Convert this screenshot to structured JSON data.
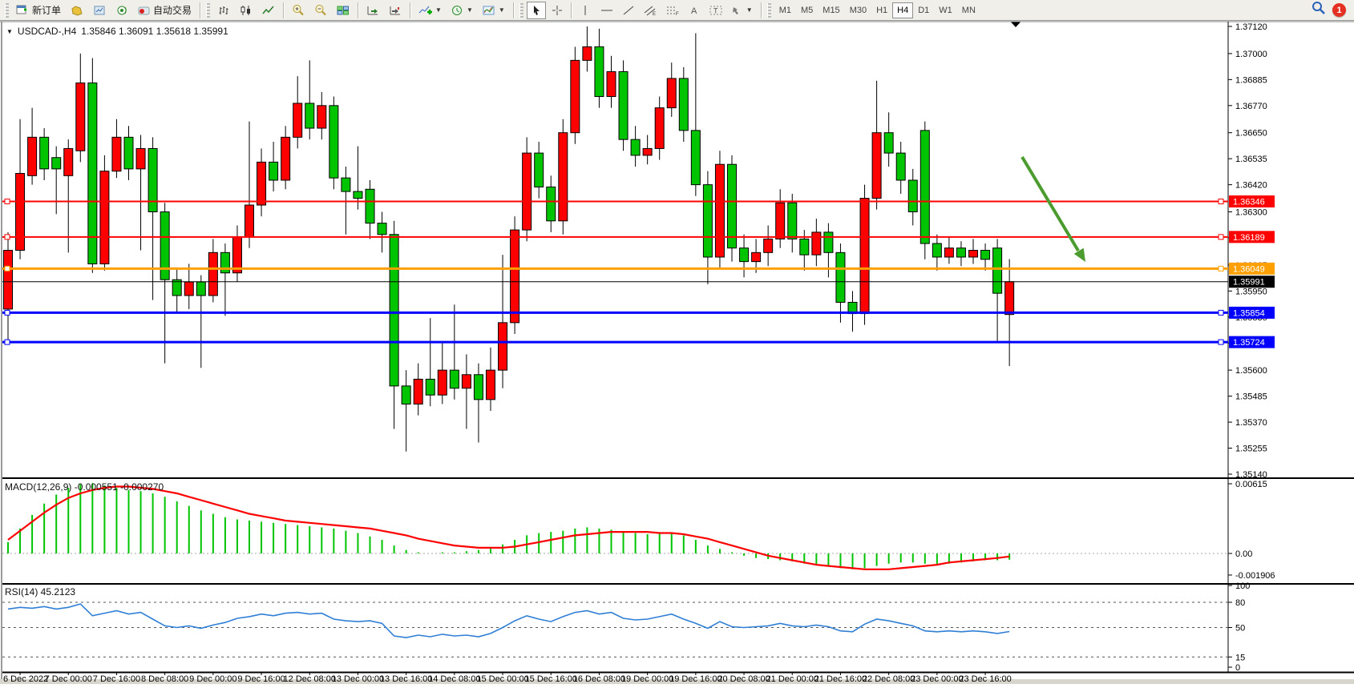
{
  "toolbar": {
    "new_order_label": "新订单",
    "autotrade_label": "自动交易",
    "periods": [
      "M1",
      "M5",
      "M15",
      "M30",
      "H1",
      "H4",
      "D1",
      "W1",
      "MN"
    ],
    "active_period": "H4",
    "notification_count": "1",
    "icons": [
      "new-order-icon",
      "profiles-icon",
      "market-watch-icon",
      "alerts-icon",
      "autotrade-icon",
      "bar-chart-icon",
      "candlestick-chart-icon",
      "line-chart-icon",
      "zoom-in-icon",
      "zoom-out-icon",
      "tile-windows-icon",
      "auto-scroll-icon",
      "chart-shift-icon",
      "indicators-add-icon",
      "period-clock-icon",
      "template-icon",
      "cursor-icon",
      "crosshair-icon",
      "vertical-line-icon",
      "horizontal-line-icon",
      "trend-line-icon",
      "equidistant-channel-icon",
      "fibonacci-icon",
      "text-tool-icon",
      "text-label-icon",
      "arrow-tool-icon",
      "search-icon",
      "notification-icon"
    ]
  },
  "chart": {
    "symbol_title": "USDCAD-,H4",
    "ohlc_text": "1.35846 1.36091 1.35618 1.35991",
    "price_axis_ticks": [
      "1.37120",
      "1.37000",
      "1.36885",
      "1.36770",
      "1.36650",
      "1.36535",
      "1.36420",
      "1.36300",
      "1.36185",
      "1.36065",
      "1.35950",
      "1.35835",
      "1.35720",
      "1.35600",
      "1.35485",
      "1.35370",
      "1.35255",
      "1.35140"
    ]
  },
  "chart_data": {
    "type": "candlestick",
    "symbol": "USDCAD",
    "timeframe": "H4",
    "ylim": [
      1.3514,
      1.3712
    ],
    "up_color": "#ff0000",
    "down_color": "#00c400",
    "x_labels": [
      "6 Dec 2022",
      "7 Dec 00:00",
      "7 Dec 16:00",
      "8 Dec 08:00",
      "9 Dec 00:00",
      "9 Dec 16:00",
      "12 Dec 08:00",
      "13 Dec 00:00",
      "13 Dec 16:00",
      "14 Dec 08:00",
      "15 Dec 00:00",
      "15 Dec 16:00",
      "16 Dec 08:00",
      "19 Dec 00:00",
      "19 Dec 16:00",
      "20 Dec 08:00",
      "21 Dec 00:00",
      "21 Dec 16:00",
      "22 Dec 08:00",
      "23 Dec 00:00",
      "23 Dec 16:00"
    ],
    "bars_ohlc": [
      [
        1.3587,
        1.3621,
        1.3572,
        1.3613
      ],
      [
        1.3613,
        1.3671,
        1.3609,
        1.3647
      ],
      [
        1.3646,
        1.3676,
        1.3642,
        1.3663
      ],
      [
        1.3663,
        1.3667,
        1.3644,
        1.3649
      ],
      [
        1.3654,
        1.3659,
        1.3629,
        1.3649
      ],
      [
        1.3646,
        1.3662,
        1.3612,
        1.3658
      ],
      [
        1.3657,
        1.37,
        1.3652,
        1.3687
      ],
      [
        1.3687,
        1.3698,
        1.3603,
        1.3607
      ],
      [
        1.3607,
        1.3655,
        1.3604,
        1.3648
      ],
      [
        1.3648,
        1.3671,
        1.3645,
        1.3663
      ],
      [
        1.3663,
        1.3668,
        1.3644,
        1.3649
      ],
      [
        1.3649,
        1.3664,
        1.3613,
        1.3658
      ],
      [
        1.3658,
        1.3663,
        1.3591,
        1.363
      ],
      [
        1.363,
        1.3634,
        1.3563,
        1.36
      ],
      [
        1.36,
        1.3605,
        1.3585,
        1.3593
      ],
      [
        1.3593,
        1.3607,
        1.3587,
        1.3599
      ],
      [
        1.3599,
        1.3602,
        1.3561,
        1.3593
      ],
      [
        1.3593,
        1.3618,
        1.359,
        1.3612
      ],
      [
        1.3612,
        1.3616,
        1.3584,
        1.3603
      ],
      [
        1.3603,
        1.3624,
        1.3599,
        1.3619
      ],
      [
        1.3619,
        1.367,
        1.3614,
        1.3633
      ],
      [
        1.3633,
        1.3658,
        1.3628,
        1.3652
      ],
      [
        1.3652,
        1.3661,
        1.3639,
        1.3644
      ],
      [
        1.3644,
        1.3668,
        1.364,
        1.3663
      ],
      [
        1.3663,
        1.369,
        1.3658,
        1.3678
      ],
      [
        1.3678,
        1.3697,
        1.3662,
        1.3667
      ],
      [
        1.3667,
        1.3683,
        1.3662,
        1.3677
      ],
      [
        1.3677,
        1.3681,
        1.364,
        1.3645
      ],
      [
        1.3645,
        1.365,
        1.362,
        1.3639
      ],
      [
        1.3639,
        1.3659,
        1.3631,
        1.3636
      ],
      [
        1.364,
        1.3644,
        1.3618,
        1.3625
      ],
      [
        1.3625,
        1.363,
        1.3612,
        1.362
      ],
      [
        1.362,
        1.3626,
        1.3534,
        1.3553
      ],
      [
        1.3553,
        1.356,
        1.3524,
        1.3545
      ],
      [
        1.3545,
        1.3563,
        1.354,
        1.3556
      ],
      [
        1.3556,
        1.3583,
        1.3544,
        1.3549
      ],
      [
        1.3549,
        1.3572,
        1.3545,
        1.356
      ],
      [
        1.356,
        1.3589,
        1.3547,
        1.3552
      ],
      [
        1.3552,
        1.3567,
        1.3534,
        1.3558
      ],
      [
        1.3558,
        1.3563,
        1.3528,
        1.3547
      ],
      [
        1.3547,
        1.357,
        1.3542,
        1.356
      ],
      [
        1.356,
        1.3611,
        1.3552,
        1.3581
      ],
      [
        1.3581,
        1.3628,
        1.3576,
        1.3622
      ],
      [
        1.3622,
        1.3663,
        1.3617,
        1.3656
      ],
      [
        1.3656,
        1.3661,
        1.3636,
        1.3641
      ],
      [
        1.3641,
        1.3646,
        1.3621,
        1.3626
      ],
      [
        1.3626,
        1.3671,
        1.362,
        1.3665
      ],
      [
        1.3665,
        1.3703,
        1.366,
        1.3697
      ],
      [
        1.3697,
        1.3712,
        1.3692,
        1.3703
      ],
      [
        1.3703,
        1.3711,
        1.3676,
        1.3681
      ],
      [
        1.3681,
        1.3699,
        1.3676,
        1.3692
      ],
      [
        1.3692,
        1.3697,
        1.3657,
        1.3662
      ],
      [
        1.3662,
        1.3668,
        1.365,
        1.3655
      ],
      [
        1.3655,
        1.3664,
        1.3651,
        1.3658
      ],
      [
        1.3658,
        1.3681,
        1.3653,
        1.3676
      ],
      [
        1.3676,
        1.3696,
        1.3672,
        1.3689
      ],
      [
        1.3689,
        1.3694,
        1.3661,
        1.3666
      ],
      [
        1.3666,
        1.3709,
        1.3637,
        1.3642
      ],
      [
        1.3642,
        1.3648,
        1.3598,
        1.361
      ],
      [
        1.361,
        1.3657,
        1.3605,
        1.3651
      ],
      [
        1.3651,
        1.3655,
        1.3608,
        1.3614
      ],
      [
        1.3614,
        1.362,
        1.3601,
        1.3608
      ],
      [
        1.3608,
        1.3618,
        1.3603,
        1.3612
      ],
      [
        1.3612,
        1.3624,
        1.3606,
        1.3618
      ],
      [
        1.3618,
        1.364,
        1.3614,
        1.3634
      ],
      [
        1.3634,
        1.3638,
        1.3612,
        1.3618
      ],
      [
        1.3618,
        1.3622,
        1.3604,
        1.3611
      ],
      [
        1.3611,
        1.3627,
        1.3606,
        1.3621
      ],
      [
        1.3621,
        1.3625,
        1.3601,
        1.3612
      ],
      [
        1.3612,
        1.3616,
        1.3581,
        1.359
      ],
      [
        1.359,
        1.3595,
        1.3577,
        1.3585
      ],
      [
        1.3585,
        1.3642,
        1.358,
        1.3636
      ],
      [
        1.3636,
        1.3688,
        1.3631,
        1.3665
      ],
      [
        1.3665,
        1.3674,
        1.365,
        1.3656
      ],
      [
        1.3656,
        1.3661,
        1.3638,
        1.3644
      ],
      [
        1.3644,
        1.3649,
        1.3624,
        1.363
      ],
      [
        1.3666,
        1.367,
        1.3609,
        1.3616
      ],
      [
        1.3616,
        1.362,
        1.3604,
        1.361
      ],
      [
        1.361,
        1.3619,
        1.3607,
        1.3614
      ],
      [
        1.3614,
        1.3617,
        1.3606,
        1.361
      ],
      [
        1.361,
        1.3618,
        1.3607,
        1.3613
      ],
      [
        1.3613,
        1.3616,
        1.3604,
        1.3609
      ],
      [
        1.3614,
        1.3618,
        1.3572,
        1.3594
      ],
      [
        1.35846,
        1.36091,
        1.35618,
        1.35991
      ]
    ],
    "hlines": [
      {
        "label": "1.36346",
        "price": 1.36346,
        "color": "#ff0000",
        "width": 2,
        "handles": true
      },
      {
        "label": "1.36189",
        "price": 1.36189,
        "color": "#ff0000",
        "width": 2,
        "handles": true
      },
      {
        "label": "1.36049",
        "price": 1.36049,
        "color": "#ffa000",
        "width": 3,
        "handles": true
      },
      {
        "label": "1.35991",
        "price": 1.35991,
        "color": "#000000",
        "width": 1,
        "handles": false
      },
      {
        "label": "1.35854",
        "price": 1.35854,
        "color": "#0000ff",
        "width": 3,
        "handles": true
      },
      {
        "label": "1.35724",
        "price": 1.35724,
        "color": "#0000ff",
        "width": 3,
        "handles": true
      }
    ],
    "annotations": [
      {
        "type": "arrow",
        "direction": "down-right",
        "color": "#4c9b2f"
      }
    ],
    "indicators": [
      {
        "name": "MACD",
        "label_full": "MACD(12,26,9) -0.000551 -0.000270",
        "params": [
          12,
          26,
          9
        ],
        "main_value": -0.000551,
        "signal_value": -0.00027,
        "axis_ticks": [
          "0.00615",
          "0.00",
          "-0.001906"
        ],
        "histogram_color": "#00c400",
        "signal_color": "#ff0000",
        "histogram": [
          0.001,
          0.0022,
          0.0034,
          0.0044,
          0.0052,
          0.0058,
          0.0061,
          0.0062,
          0.006,
          0.0058,
          0.0056,
          0.0055,
          0.0053,
          0.005,
          0.0046,
          0.0042,
          0.0038,
          0.0035,
          0.0032,
          0.003,
          0.0029,
          0.0028,
          0.0027,
          0.0026,
          0.0025,
          0.0024,
          0.0023,
          0.0022,
          0.002,
          0.0018,
          0.0015,
          0.0012,
          0.0007,
          0.0003,
          0.0001,
          0.0,
          0.0001,
          0.0001,
          0.0002,
          0.0003,
          0.0005,
          0.0008,
          0.0012,
          0.0016,
          0.0018,
          0.0019,
          0.002,
          0.0022,
          0.0023,
          0.0022,
          0.0021,
          0.0019,
          0.0018,
          0.0017,
          0.0018,
          0.0018,
          0.0016,
          0.0012,
          0.0007,
          0.0004,
          0.0001,
          -0.0002,
          -0.0004,
          -0.0005,
          -0.0006,
          -0.0007,
          -0.0009,
          -0.001,
          -0.0011,
          -0.0013,
          -0.0014,
          -0.0013,
          -0.0011,
          -0.0009,
          -0.0008,
          -0.0008,
          -0.0009,
          -0.001,
          -0.0009,
          -0.0008,
          -0.0007,
          -0.0006,
          -0.0006,
          -0.000551
        ],
        "signal": [
          0.0012,
          0.002,
          0.0028,
          0.0036,
          0.0043,
          0.0049,
          0.0053,
          0.0056,
          0.0058,
          0.0059,
          0.0059,
          0.0058,
          0.0057,
          0.0055,
          0.0053,
          0.005,
          0.0047,
          0.0044,
          0.0041,
          0.0038,
          0.0035,
          0.0033,
          0.0031,
          0.0029,
          0.0028,
          0.0027,
          0.0026,
          0.0025,
          0.0024,
          0.0023,
          0.0022,
          0.002,
          0.0018,
          0.0016,
          0.0013,
          0.0011,
          0.0009,
          0.0007,
          0.0006,
          0.0005,
          0.0005,
          0.0005,
          0.0006,
          0.0008,
          0.001,
          0.0012,
          0.0014,
          0.0016,
          0.0017,
          0.0018,
          0.0019,
          0.0019,
          0.0019,
          0.0019,
          0.0018,
          0.0018,
          0.0017,
          0.0015,
          0.0013,
          0.001,
          0.0007,
          0.0004,
          0.0001,
          -0.0002,
          -0.0004,
          -0.0006,
          -0.0008,
          -0.001,
          -0.0011,
          -0.0012,
          -0.0013,
          -0.0014,
          -0.0014,
          -0.0014,
          -0.0013,
          -0.0012,
          -0.0011,
          -0.001,
          -0.0008,
          -0.0007,
          -0.0006,
          -0.0005,
          -0.0004,
          -0.00027
        ]
      },
      {
        "name": "RSI",
        "label_full": "RSI(14) 45.2123",
        "period": 14,
        "value": 45.2123,
        "axis_ticks": [
          "100",
          "80",
          "50",
          "15",
          "0"
        ],
        "levels": [
          80,
          50,
          15
        ],
        "line_color": "#2f7fd6",
        "series": [
          72,
          74,
          73,
          75,
          72,
          74,
          78,
          64,
          67,
          70,
          66,
          68,
          60,
          52,
          50,
          52,
          49,
          53,
          56,
          61,
          63,
          66,
          64,
          67,
          68,
          66,
          67,
          60,
          58,
          57,
          58,
          55,
          40,
          38,
          41,
          39,
          42,
          40,
          41,
          39,
          43,
          50,
          58,
          64,
          60,
          57,
          63,
          68,
          70,
          66,
          68,
          61,
          59,
          60,
          63,
          66,
          60,
          55,
          49,
          57,
          51,
          50,
          51,
          52,
          55,
          52,
          51,
          53,
          51,
          46,
          45,
          54,
          60,
          58,
          55,
          52,
          46,
          45,
          46,
          45,
          46,
          45,
          43,
          45.2123
        ]
      }
    ]
  }
}
